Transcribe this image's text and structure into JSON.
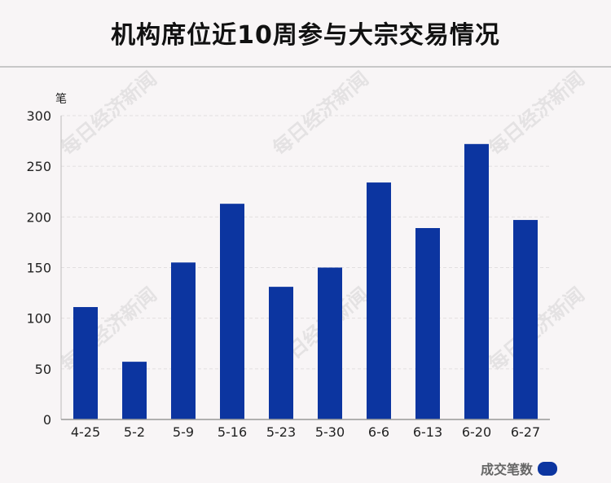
{
  "title": "机构席位近10周参与大宗交易情况",
  "watermark": "每日经济新闻",
  "chart_data": {
    "type": "bar",
    "title": "机构席位近10周参与大宗交易情况",
    "ylabel": "笔",
    "xlabel": "",
    "categories": [
      "4-25",
      "5-2",
      "5-9",
      "5-16",
      "5-23",
      "5-30",
      "6-6",
      "6-13",
      "6-20",
      "6-27"
    ],
    "series": [
      {
        "name": "成交笔数",
        "values": [
          111,
          57,
          155,
          213,
          131,
          150,
          234,
          189,
          272,
          197
        ]
      }
    ],
    "ylim": [
      0,
      300
    ],
    "yticks": [
      0,
      50,
      100,
      150,
      200,
      250,
      300
    ],
    "grid": true,
    "legend": "bottom-right",
    "color": "#0c35a0"
  }
}
